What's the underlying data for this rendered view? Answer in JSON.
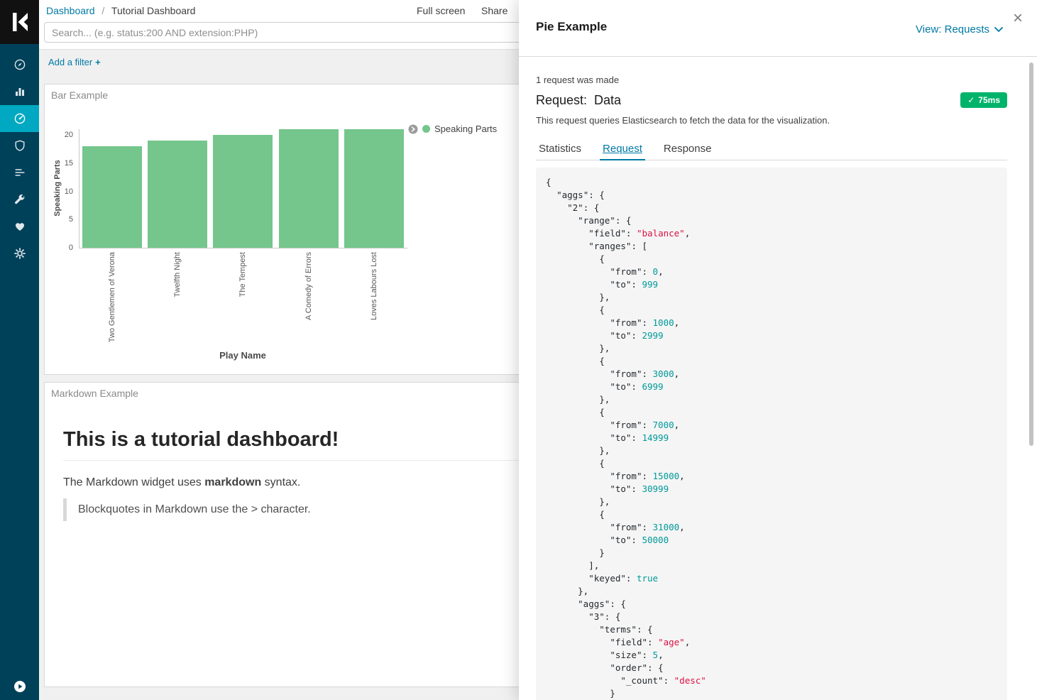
{
  "app": {
    "name": "Kibana"
  },
  "icons": {
    "close": "×",
    "check": "✓",
    "plus": "+"
  },
  "colors": {
    "link": "#0079a5",
    "sidebar_bg": "#00415a",
    "sidebar_active_bg": "#00a9c1",
    "bar_fill": "#74c68c",
    "badge_bg": "#00b36b",
    "code_string": "#dd1144",
    "code_number": "#009999"
  },
  "sidebar": {
    "icon_names": [
      "discover-compass",
      "visualize-bar-chart",
      "dashboard-gauge",
      "graph-shield",
      "timelion-lines",
      "dev-tools-wrench",
      "monitoring-heart",
      "management-gear",
      "collapse-play"
    ]
  },
  "breadcrumb": {
    "root": "Dashboard",
    "separator": "/",
    "current": "Tutorial Dashboard"
  },
  "top_menu": {
    "full_screen": "Full screen",
    "share": "Share"
  },
  "search": {
    "placeholder": "Search... (e.g. status:200 AND extension:PHP)",
    "value": ""
  },
  "filter_bar": {
    "add_filter_label": "Add a filter"
  },
  "panels": {
    "bar": {
      "title": "Bar Example"
    },
    "markdown": {
      "title": "Markdown Example",
      "heading": "This is a tutorial dashboard!",
      "body_prefix": "The Markdown widget uses ",
      "body_bold": "markdown",
      "body_suffix": " syntax.",
      "blockquote": "Blockquotes in Markdown use the > character."
    }
  },
  "chart_data": {
    "type": "bar",
    "title": "Bar Example",
    "categories": [
      "Two Gentlemen of Verona",
      "Twelfth Night",
      "The Tempest",
      "A Comedy of Errors",
      "Loves Labours Lost"
    ],
    "values": [
      18,
      19,
      20,
      21,
      21
    ],
    "xlabel": "Play Name",
    "ylabel": "Speaking Parts",
    "ylim": [
      0,
      21
    ],
    "yticks": [
      0,
      5,
      10,
      15,
      20
    ],
    "legend": [
      "Speaking Parts"
    ],
    "legend_position": "top-right",
    "grid": false,
    "bar_color": "#74c68c"
  },
  "flyout": {
    "title": "Pie Example",
    "view_selector": "View: Requests",
    "requests_made": "1 request was made",
    "request_label": "Request:",
    "request_name": "Data",
    "duration": "75ms",
    "description": "This request queries Elasticsearch to fetch the data for the visualization.",
    "tabs": [
      {
        "label": "Statistics",
        "active": false
      },
      {
        "label": "Request",
        "active": true
      },
      {
        "label": "Response",
        "active": false
      }
    ],
    "code_lines": [
      "{",
      "  \"aggs\": {",
      "    \"2\": {",
      "      \"range\": {",
      "        \"field\": \"balance\",",
      "        \"ranges\": [",
      "          {",
      "            \"from\": 0,",
      "            \"to\": 999",
      "          },",
      "          {",
      "            \"from\": 1000,",
      "            \"to\": 2999",
      "          },",
      "          {",
      "            \"from\": 3000,",
      "            \"to\": 6999",
      "          },",
      "          {",
      "            \"from\": 7000,",
      "            \"to\": 14999",
      "          },",
      "          {",
      "            \"from\": 15000,",
      "            \"to\": 30999",
      "          },",
      "          {",
      "            \"from\": 31000,",
      "            \"to\": 50000",
      "          }",
      "        ],",
      "        \"keyed\": true",
      "      },",
      "      \"aggs\": {",
      "        \"3\": {",
      "          \"terms\": {",
      "            \"field\": \"age\",",
      "            \"size\": 5,",
      "            \"order\": {",
      "              \"_count\": \"desc\"",
      "            }"
    ]
  }
}
